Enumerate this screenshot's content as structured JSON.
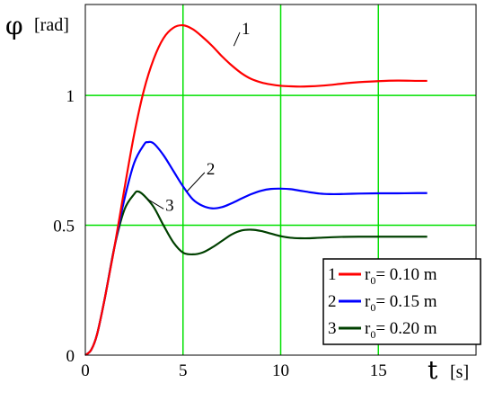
{
  "chart_data": {
    "type": "line",
    "ylabel_symbol": "φ",
    "ylabel_unit": "[rad]",
    "xlabel_symbol": "t",
    "xlabel_unit": "[s]",
    "xlim": [
      0,
      20
    ],
    "ylim": [
      0,
      1.35
    ],
    "xticks": [
      0,
      5,
      10,
      15
    ],
    "yticks": [
      0,
      0.5,
      1
    ],
    "xtick_labels": [
      "0",
      "5",
      "10",
      "15"
    ],
    "ytick_labels": [
      "0",
      "0.5",
      "1"
    ],
    "grid": true,
    "grid_color": "#00e000",
    "legend_position": "bottom-right",
    "series": [
      {
        "id": "1",
        "name": "r₀= 0.10 m",
        "name_base": "r",
        "name_sub": "0",
        "name_rest": "= 0.10 m",
        "color": "#ff0000",
        "points": [
          [
            0,
            0
          ],
          [
            0.3,
            0.02
          ],
          [
            0.6,
            0.08
          ],
          [
            1.0,
            0.22
          ],
          [
            1.5,
            0.42
          ],
          [
            2.0,
            0.64
          ],
          [
            2.5,
            0.85
          ],
          [
            3.0,
            1.02
          ],
          [
            3.5,
            1.14
          ],
          [
            4.0,
            1.22
          ],
          [
            4.5,
            1.26
          ],
          [
            5.0,
            1.27
          ],
          [
            5.5,
            1.255
          ],
          [
            6.0,
            1.225
          ],
          [
            6.5,
            1.19
          ],
          [
            7.0,
            1.15
          ],
          [
            7.5,
            1.115
          ],
          [
            8.0,
            1.085
          ],
          [
            8.5,
            1.063
          ],
          [
            9.0,
            1.05
          ],
          [
            9.5,
            1.042
          ],
          [
            10.0,
            1.037
          ],
          [
            10.5,
            1.035
          ],
          [
            11.0,
            1.034
          ],
          [
            11.5,
            1.035
          ],
          [
            12.0,
            1.037
          ],
          [
            12.5,
            1.04
          ],
          [
            13.0,
            1.044
          ],
          [
            13.5,
            1.048
          ],
          [
            14.0,
            1.051
          ],
          [
            15.0,
            1.055
          ],
          [
            16.0,
            1.057
          ],
          [
            17.0,
            1.056
          ],
          [
            17.5,
            1.056
          ]
        ]
      },
      {
        "id": "2",
        "name": "r₀= 0.15 m",
        "name_base": "r",
        "name_sub": "0",
        "name_rest": "= 0.15 m",
        "color": "#0000ff",
        "points": [
          [
            0,
            0
          ],
          [
            0.3,
            0.02
          ],
          [
            0.6,
            0.08
          ],
          [
            1.0,
            0.22
          ],
          [
            1.5,
            0.42
          ],
          [
            2.0,
            0.6
          ],
          [
            2.5,
            0.74
          ],
          [
            3.0,
            0.81
          ],
          [
            3.2,
            0.82
          ],
          [
            3.5,
            0.815
          ],
          [
            4.0,
            0.77
          ],
          [
            4.5,
            0.71
          ],
          [
            5.0,
            0.65
          ],
          [
            5.5,
            0.6
          ],
          [
            6.0,
            0.575
          ],
          [
            6.5,
            0.565
          ],
          [
            7.0,
            0.57
          ],
          [
            7.5,
            0.585
          ],
          [
            8.0,
            0.603
          ],
          [
            8.5,
            0.62
          ],
          [
            9.0,
            0.633
          ],
          [
            9.5,
            0.64
          ],
          [
            10.0,
            0.641
          ],
          [
            10.5,
            0.639
          ],
          [
            11.0,
            0.633
          ],
          [
            11.5,
            0.627
          ],
          [
            12.0,
            0.622
          ],
          [
            12.5,
            0.62
          ],
          [
            13.0,
            0.62
          ],
          [
            14.0,
            0.622
          ],
          [
            15.0,
            0.623
          ],
          [
            16.0,
            0.623
          ],
          [
            17.0,
            0.624
          ],
          [
            17.5,
            0.624
          ]
        ]
      },
      {
        "id": "3",
        "name": "r₀= 0.20 m",
        "name_base": "r",
        "name_sub": "0",
        "name_rest": "= 0.20 m",
        "color": "#004000",
        "points": [
          [
            0,
            0
          ],
          [
            0.3,
            0.02
          ],
          [
            0.6,
            0.08
          ],
          [
            1.0,
            0.22
          ],
          [
            1.5,
            0.42
          ],
          [
            2.0,
            0.56
          ],
          [
            2.5,
            0.62
          ],
          [
            2.7,
            0.63
          ],
          [
            3.0,
            0.615
          ],
          [
            3.5,
            0.57
          ],
          [
            4.0,
            0.5
          ],
          [
            4.5,
            0.435
          ],
          [
            5.0,
            0.395
          ],
          [
            5.5,
            0.388
          ],
          [
            6.0,
            0.395
          ],
          [
            6.5,
            0.415
          ],
          [
            7.0,
            0.44
          ],
          [
            7.5,
            0.465
          ],
          [
            8.0,
            0.48
          ],
          [
            8.5,
            0.483
          ],
          [
            9.0,
            0.478
          ],
          [
            9.5,
            0.468
          ],
          [
            10.0,
            0.458
          ],
          [
            10.5,
            0.452
          ],
          [
            11.0,
            0.45
          ],
          [
            11.5,
            0.45
          ],
          [
            12.0,
            0.452
          ],
          [
            13.0,
            0.455
          ],
          [
            14.0,
            0.456
          ],
          [
            15.0,
            0.456
          ],
          [
            16.0,
            0.456
          ],
          [
            17.0,
            0.456
          ],
          [
            17.5,
            0.456
          ]
        ]
      }
    ],
    "annotations": [
      {
        "text": "1",
        "series": "1",
        "at_x": 7.6,
        "at_y": 1.19,
        "label_x": 8.0,
        "label_y": 1.25
      },
      {
        "text": "2",
        "series": "2",
        "at_x": 5.2,
        "at_y": 0.63,
        "label_x": 6.2,
        "label_y": 0.71
      },
      {
        "text": "3",
        "series": "3",
        "at_x": 3.2,
        "at_y": 0.6,
        "label_x": 4.1,
        "label_y": 0.57
      }
    ]
  }
}
